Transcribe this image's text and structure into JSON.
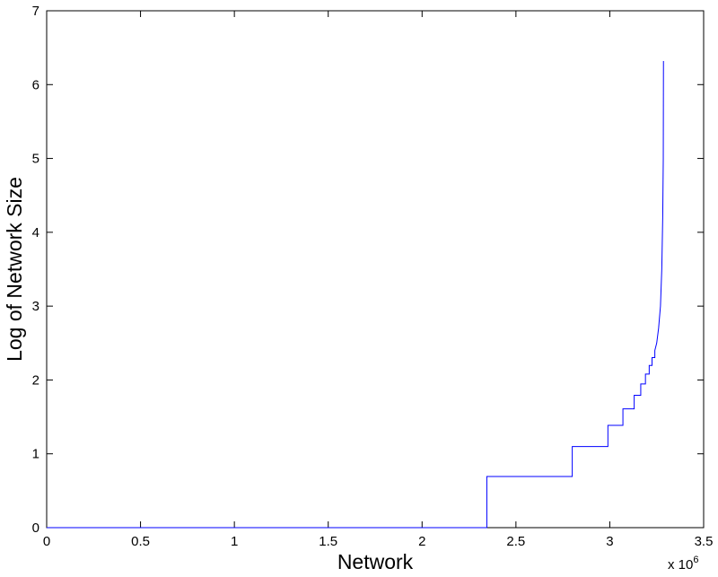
{
  "chart_data": {
    "type": "line",
    "xlabel": "Network",
    "ylabel": "Log of Network Size",
    "x_scale_label": {
      "base": "x 10",
      "exponent": "6"
    },
    "x": [
      0,
      2345000,
      2345000,
      2800000,
      2800000,
      2990000,
      2990000,
      3070000,
      3070000,
      3130000,
      3130000,
      3165000,
      3165000,
      3190000,
      3190000,
      3210000,
      3210000,
      3225000,
      3225000,
      3240000,
      3240000,
      3250000,
      3260000,
      3270000,
      3277000,
      3282000,
      3285000,
      3286000
    ],
    "series": [
      {
        "name": "log size",
        "color": "#0000ff",
        "values": [
          0,
          0,
          0.693,
          0.693,
          1.099,
          1.099,
          1.386,
          1.386,
          1.609,
          1.609,
          1.792,
          1.792,
          1.946,
          1.946,
          2.079,
          2.079,
          2.197,
          2.197,
          2.303,
          2.303,
          2.4,
          2.5,
          2.7,
          3.0,
          3.5,
          4.2,
          5.0,
          6.32
        ]
      }
    ],
    "xlim": [
      0,
      3500000
    ],
    "xticks": [
      0,
      {
        "value": 500000,
        "label": "0.5"
      },
      {
        "value": 1000000,
        "label": "1"
      },
      {
        "value": 1500000,
        "label": "1.5"
      },
      {
        "value": 2000000,
        "label": "2"
      },
      {
        "value": 2500000,
        "label": "2.5"
      },
      {
        "value": 3000000,
        "label": "3"
      },
      {
        "value": 3500000,
        "label": "3.5"
      }
    ],
    "ylim": [
      0,
      7
    ],
    "yticks": [
      0,
      1,
      2,
      3,
      4,
      5,
      6,
      7
    ],
    "grid": false
  }
}
